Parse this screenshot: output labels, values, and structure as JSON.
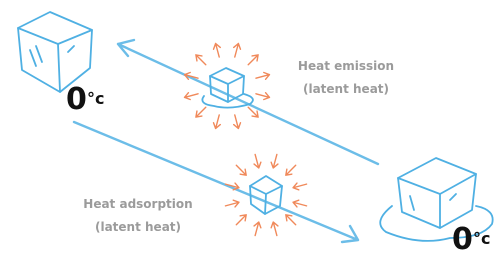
{
  "states": [
    {
      "value": "0",
      "unit": "°c"
    },
    {
      "value": "0",
      "unit": "°c"
    }
  ],
  "emission": {
    "title": "Heat emission",
    "note": "(latent heat)"
  },
  "adsorption": {
    "title": "Heat adsorption",
    "note": "(latent heat)"
  }
}
